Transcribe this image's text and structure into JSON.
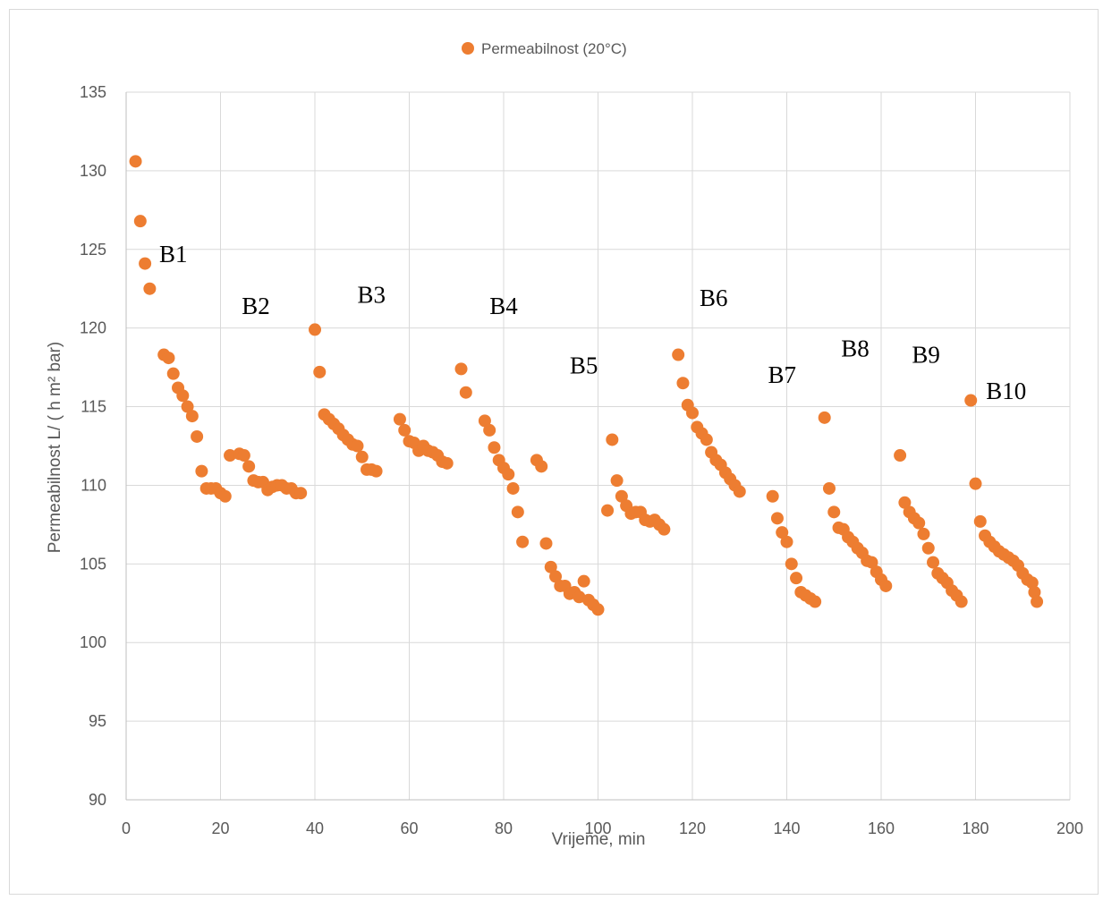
{
  "chart_data": {
    "type": "scatter",
    "xlabel": "Vrijeme, min",
    "ylabel": "Permeabilnost L/ ( h m² bar)",
    "xlim": [
      0,
      200
    ],
    "ylim": [
      90,
      135
    ],
    "x_ticks": [
      0,
      20,
      40,
      60,
      80,
      100,
      120,
      140,
      160,
      180,
      200
    ],
    "y_ticks": [
      90,
      95,
      100,
      105,
      110,
      115,
      120,
      125,
      130,
      135
    ],
    "grid": true,
    "legend_position": "top-center",
    "colors": {
      "marker": "#ED7D31",
      "grid": "#d9d9d9",
      "axis": "#bfbfbf"
    },
    "series": [
      {
        "name": "Permeabilnost (20°C)",
        "points": [
          [
            2,
            130.6
          ],
          [
            3,
            126.8
          ],
          [
            4,
            124.1
          ],
          [
            5,
            122.5
          ],
          [
            8,
            118.3
          ],
          [
            9,
            118.1
          ],
          [
            10,
            117.1
          ],
          [
            11,
            116.2
          ],
          [
            12,
            115.7
          ],
          [
            13,
            115.0
          ],
          [
            14,
            114.4
          ],
          [
            15,
            113.1
          ],
          [
            16,
            110.9
          ],
          [
            17,
            109.8
          ],
          [
            18,
            109.8
          ],
          [
            19,
            109.8
          ],
          [
            20,
            109.5
          ],
          [
            21,
            109.3
          ],
          [
            22,
            111.9
          ],
          [
            24,
            112.0
          ],
          [
            25,
            111.9
          ],
          [
            26,
            111.2
          ],
          [
            27,
            110.3
          ],
          [
            28,
            110.2
          ],
          [
            29,
            110.2
          ],
          [
            30,
            109.7
          ],
          [
            31,
            109.9
          ],
          [
            32,
            110.0
          ],
          [
            33,
            110.0
          ],
          [
            34,
            109.8
          ],
          [
            35,
            109.8
          ],
          [
            36,
            109.5
          ],
          [
            37,
            109.5
          ],
          [
            40,
            119.9
          ],
          [
            41,
            117.2
          ],
          [
            42,
            114.5
          ],
          [
            43,
            114.2
          ],
          [
            44,
            113.9
          ],
          [
            45,
            113.6
          ],
          [
            46,
            113.2
          ],
          [
            47,
            112.9
          ],
          [
            48,
            112.6
          ],
          [
            49,
            112.5
          ],
          [
            50,
            111.8
          ],
          [
            51,
            111.0
          ],
          [
            52,
            111.0
          ],
          [
            53,
            110.9
          ],
          [
            58,
            114.2
          ],
          [
            59,
            113.5
          ],
          [
            60,
            112.8
          ],
          [
            61,
            112.7
          ],
          [
            62,
            112.2
          ],
          [
            63,
            112.5
          ],
          [
            64,
            112.2
          ],
          [
            65,
            112.1
          ],
          [
            66,
            111.9
          ],
          [
            67,
            111.5
          ],
          [
            68,
            111.4
          ],
          [
            71,
            117.4
          ],
          [
            72,
            115.9
          ],
          [
            76,
            114.1
          ],
          [
            77,
            113.5
          ],
          [
            78,
            112.4
          ],
          [
            79,
            111.6
          ],
          [
            80,
            111.1
          ],
          [
            81,
            110.7
          ],
          [
            82,
            109.8
          ],
          [
            83,
            108.3
          ],
          [
            84,
            106.4
          ],
          [
            87,
            111.6
          ],
          [
            88,
            111.2
          ],
          [
            89,
            106.3
          ],
          [
            90,
            104.8
          ],
          [
            91,
            104.2
          ],
          [
            92,
            103.6
          ],
          [
            93,
            103.6
          ],
          [
            94,
            103.1
          ],
          [
            95,
            103.2
          ],
          [
            96,
            102.9
          ],
          [
            97,
            103.9
          ],
          [
            98,
            102.7
          ],
          [
            99,
            102.4
          ],
          [
            100,
            102.1
          ],
          [
            102,
            108.4
          ],
          [
            103,
            112.9
          ],
          [
            104,
            110.3
          ],
          [
            105,
            109.3
          ],
          [
            106,
            108.7
          ],
          [
            107,
            108.2
          ],
          [
            108,
            108.3
          ],
          [
            109,
            108.3
          ],
          [
            110,
            107.8
          ],
          [
            111,
            107.7
          ],
          [
            112,
            107.8
          ],
          [
            113,
            107.5
          ],
          [
            114,
            107.2
          ],
          [
            117,
            118.3
          ],
          [
            118,
            116.5
          ],
          [
            119,
            115.1
          ],
          [
            120,
            114.6
          ],
          [
            121,
            113.7
          ],
          [
            122,
            113.3
          ],
          [
            123,
            112.9
          ],
          [
            124,
            112.1
          ],
          [
            125,
            111.6
          ],
          [
            126,
            111.3
          ],
          [
            127,
            110.8
          ],
          [
            128,
            110.4
          ],
          [
            129,
            110.0
          ],
          [
            130,
            109.6
          ],
          [
            137,
            109.3
          ],
          [
            138,
            107.9
          ],
          [
            139,
            107.0
          ],
          [
            140,
            106.4
          ],
          [
            141,
            105.0
          ],
          [
            142,
            104.1
          ],
          [
            143,
            103.2
          ],
          [
            144,
            103.0
          ],
          [
            145,
            102.8
          ],
          [
            146,
            102.6
          ],
          [
            148,
            114.3
          ],
          [
            149,
            109.8
          ],
          [
            150,
            108.3
          ],
          [
            151,
            107.3
          ],
          [
            152,
            107.2
          ],
          [
            153,
            106.7
          ],
          [
            154,
            106.4
          ],
          [
            155,
            106.0
          ],
          [
            156,
            105.7
          ],
          [
            157,
            105.2
          ],
          [
            158,
            105.1
          ],
          [
            159,
            104.5
          ],
          [
            160,
            104.0
          ],
          [
            161,
            103.6
          ],
          [
            164,
            111.9
          ],
          [
            165,
            108.9
          ],
          [
            166,
            108.3
          ],
          [
            167,
            107.9
          ],
          [
            168,
            107.6
          ],
          [
            169,
            106.9
          ],
          [
            170,
            106.0
          ],
          [
            171,
            105.1
          ],
          [
            172,
            104.4
          ],
          [
            173,
            104.1
          ],
          [
            174,
            103.8
          ],
          [
            175,
            103.3
          ],
          [
            176,
            103.0
          ],
          [
            177,
            102.6
          ],
          [
            179,
            115.4
          ],
          [
            180,
            110.1
          ],
          [
            181,
            107.7
          ],
          [
            182,
            106.8
          ],
          [
            183,
            106.4
          ],
          [
            184,
            106.1
          ],
          [
            185,
            105.8
          ],
          [
            186,
            105.6
          ],
          [
            187,
            105.4
          ],
          [
            188,
            105.2
          ],
          [
            189,
            104.9
          ],
          [
            190,
            104.4
          ],
          [
            191,
            104.0
          ],
          [
            192,
            103.8
          ],
          [
            192.5,
            103.2
          ],
          [
            193,
            102.6
          ]
        ]
      }
    ],
    "annotations": [
      {
        "text": "B1",
        "x": 10,
        "y": 124.2
      },
      {
        "text": "B2",
        "x": 27.5,
        "y": 120.9
      },
      {
        "text": "B3",
        "x": 52,
        "y": 121.6
      },
      {
        "text": "B4",
        "x": 80,
        "y": 120.9
      },
      {
        "text": "B5",
        "x": 97,
        "y": 117.1
      },
      {
        "text": "B6",
        "x": 124.5,
        "y": 121.4
      },
      {
        "text": "B7",
        "x": 139,
        "y": 116.5
      },
      {
        "text": "B8",
        "x": 154.5,
        "y": 118.2
      },
      {
        "text": "B9",
        "x": 169.5,
        "y": 117.8
      },
      {
        "text": "B10",
        "x": 186.5,
        "y": 115.5
      }
    ]
  }
}
